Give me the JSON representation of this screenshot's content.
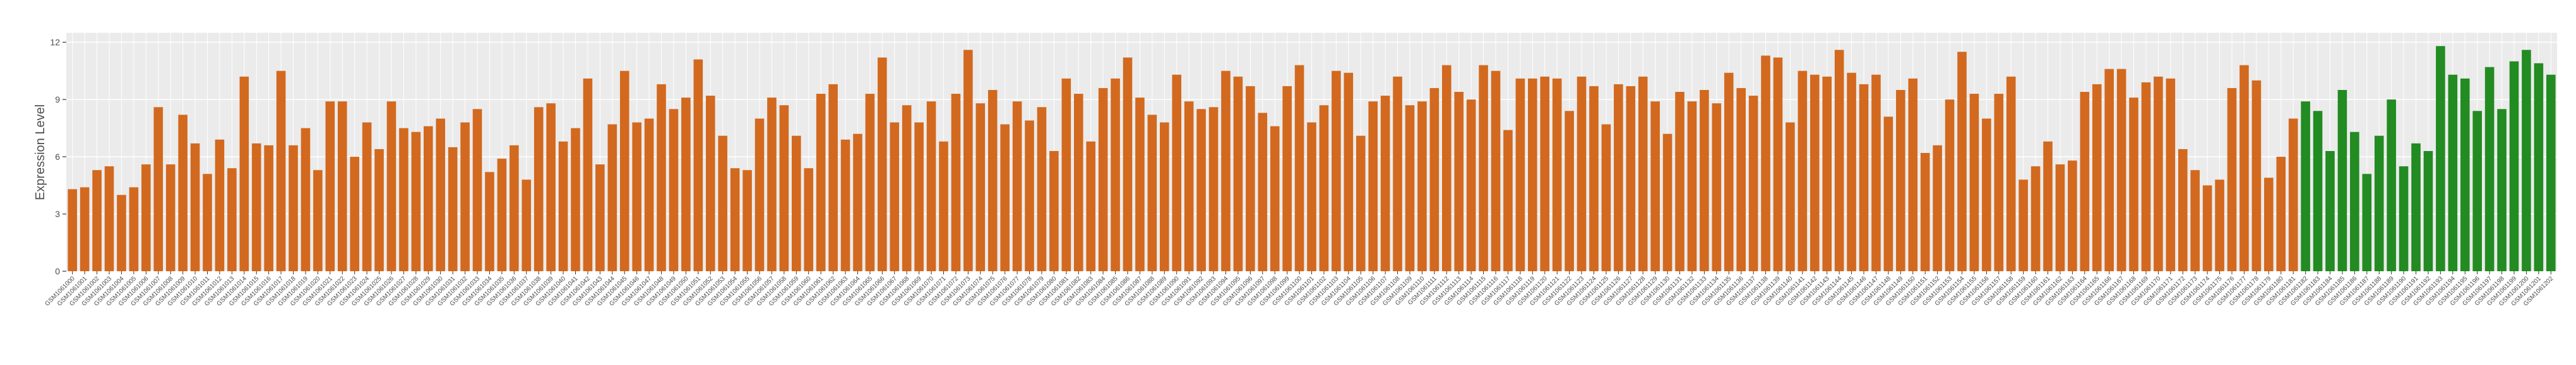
{
  "chart_data": {
    "type": "bar",
    "y_label": "Expression Level",
    "categories": [
      "GSM1061000",
      "GSM1061001",
      "GSM1061002",
      "GSM1061003",
      "GSM1061004",
      "GSM1061005",
      "GSM1061006",
      "GSM1061007",
      "GSM1061008",
      "GSM1061009",
      "GSM1061010",
      "GSM1061011",
      "GSM1061012",
      "GSM1061013",
      "GSM1061014",
      "GSM1061015",
      "GSM1061016",
      "GSM1061017",
      "GSM1061018",
      "GSM1061019",
      "GSM1061020",
      "GSM1061021",
      "GSM1061022",
      "GSM1061023",
      "GSM1061024",
      "GSM1061025",
      "GSM1061026",
      "GSM1061027",
      "GSM1061028",
      "GSM1061029",
      "GSM1061030",
      "GSM1061031",
      "GSM1061032",
      "GSM1061033",
      "GSM1061034",
      "GSM1061035",
      "GSM1061036",
      "GSM1061037",
      "GSM1061038",
      "GSM1061039",
      "GSM1061040",
      "GSM1061041",
      "GSM1061042",
      "GSM1061043",
      "GSM1061044",
      "GSM1061045",
      "GSM1061046",
      "GSM1061047",
      "GSM1061048",
      "GSM1061049",
      "GSM1061050",
      "GSM1061051",
      "GSM1061052",
      "GSM1061053",
      "GSM1061054",
      "GSM1061055",
      "GSM1061056",
      "GSM1061057",
      "GSM1061058",
      "GSM1061059",
      "GSM1061060",
      "GSM1061061",
      "GSM1061062",
      "GSM1061063",
      "GSM1061064",
      "GSM1061065",
      "GSM1061066",
      "GSM1061067",
      "GSM1061068",
      "GSM1061069",
      "GSM1061070",
      "GSM1061071",
      "GSM1061072",
      "GSM1061073",
      "GSM1061074",
      "GSM1061075",
      "GSM1061076",
      "GSM1061077",
      "GSM1061078",
      "GSM1061079",
      "GSM1061080",
      "GSM1061081",
      "GSM1061082",
      "GSM1061083",
      "GSM1061084",
      "GSM1061085",
      "GSM1061086",
      "GSM1061087",
      "GSM1061088",
      "GSM1061089",
      "GSM1061090",
      "GSM1061091",
      "GSM1061092",
      "GSM1061093",
      "GSM1061094",
      "GSM1061095",
      "GSM1061096",
      "GSM1061097",
      "GSM1061098",
      "GSM1061099",
      "GSM1061100",
      "GSM1061101",
      "GSM1061102",
      "GSM1061103",
      "GSM1061104",
      "GSM1061105",
      "GSM1061106",
      "GSM1061107",
      "GSM1061108",
      "GSM1061109",
      "GSM1061110",
      "GSM1061111",
      "GSM1061112",
      "GSM1061113",
      "GSM1061114",
      "GSM1061115",
      "GSM1061116",
      "GSM1061117",
      "GSM1061118",
      "GSM1061119",
      "GSM1061120",
      "GSM1061121",
      "GSM1061122",
      "GSM1061123",
      "GSM1061124",
      "GSM1061125",
      "GSM1061126",
      "GSM1061127",
      "GSM1061128",
      "GSM1061129",
      "GSM1061130",
      "GSM1061131",
      "GSM1061132",
      "GSM1061133",
      "GSM1061134",
      "GSM1061135",
      "GSM1061136",
      "GSM1061137",
      "GSM1061138",
      "GSM1061139",
      "GSM1061140",
      "GSM1061141",
      "GSM1061142",
      "GSM1061143",
      "GSM1061144",
      "GSM1061145",
      "GSM1061146",
      "GSM1061147",
      "GSM1061148",
      "GSM1061149",
      "GSM1061150",
      "GSM1061151",
      "GSM1061152",
      "GSM1061153",
      "GSM1061154",
      "GSM1061155",
      "GSM1061156",
      "GSM1061157",
      "GSM1061158",
      "GSM1061159",
      "GSM1061160",
      "GSM1061161",
      "GSM1061162",
      "GSM1061163",
      "GSM1061164",
      "GSM1061165",
      "GSM1061166",
      "GSM1061167",
      "GSM1061168",
      "GSM1061169",
      "GSM1061170",
      "GSM1061171",
      "GSM1061172",
      "GSM1061173",
      "GSM1061174",
      "GSM1061175",
      "GSM1061176",
      "GSM1061177",
      "GSM1061178",
      "GSM1061179",
      "GSM1061180",
      "GSM1061181",
      "GSM1061182",
      "GSM1061183",
      "GSM1061184",
      "GSM1061185",
      "GSM1061186",
      "GSM1061187",
      "GSM1061188",
      "GSM1061189",
      "GSM1061190",
      "GSM1061191",
      "GSM1061192",
      "GSM1061193",
      "GSM1061194",
      "GSM1061195",
      "GSM1061196",
      "GSM1061197",
      "GSM1061198",
      "GSM1061199",
      "GSM1061200",
      "GSM1061201",
      "GSM1061202"
    ],
    "series": [
      {
        "color": "#d2691e",
        "values": [
          4.3,
          4.4,
          5.3,
          5.5,
          4.0,
          4.4,
          5.6,
          8.6,
          5.6,
          8.2,
          6.7,
          5.1,
          6.9,
          5.4,
          10.2,
          6.7,
          6.6,
          10.5,
          6.6,
          7.5,
          5.3,
          8.9,
          8.9,
          6.0,
          7.8,
          6.4,
          8.9,
          7.5,
          7.3,
          7.6,
          8.0,
          6.5,
          7.8,
          8.5,
          5.2,
          5.9,
          6.6,
          4.8,
          8.6,
          8.8,
          6.8,
          7.5,
          10.1,
          5.6,
          7.7,
          10.5,
          7.8,
          8.0,
          9.8,
          8.5,
          9.1,
          11.1,
          9.2,
          7.1,
          5.4,
          5.3,
          8.0,
          9.1,
          8.7,
          7.1,
          5.4,
          9.3,
          9.8,
          6.9,
          7.2,
          9.3,
          11.2,
          7.8,
          8.7,
          7.8,
          8.9,
          6.8,
          9.3,
          11.6,
          8.8,
          9.5,
          7.7,
          8.9,
          7.9,
          8.6,
          6.3,
          10.1,
          9.3,
          6.8,
          9.6,
          10.1,
          11.2,
          9.1,
          8.2,
          7.8,
          10.3,
          8.9,
          8.5,
          8.6,
          10.5,
          10.2,
          9.7,
          8.3,
          7.6,
          9.7,
          10.8,
          7.8,
          8.7,
          10.5,
          10.4,
          7.1,
          8.9,
          9.2,
          10.2,
          8.7,
          8.9,
          9.6,
          10.8,
          9.4,
          9.0,
          10.8,
          10.5,
          7.4,
          10.1,
          10.1,
          10.2,
          10.1,
          8.4,
          10.2,
          9.7,
          7.7,
          9.8,
          9.7,
          10.2,
          8.9,
          7.2,
          9.4,
          8.9,
          9.5,
          8.8,
          10.4,
          9.6,
          9.2,
          11.3,
          11.2,
          7.8,
          10.5,
          10.3,
          10.2,
          11.6,
          10.4,
          9.8,
          10.3,
          8.1,
          9.5,
          10.1,
          6.2,
          6.6,
          9.0,
          11.5,
          9.3,
          8.0,
          9.3,
          10.2,
          4.8,
          5.5,
          6.8,
          5.6,
          5.8,
          9.4,
          9.8,
          10.6,
          10.6,
          9.1,
          9.9,
          10.2,
          10.1,
          6.4,
          5.3,
          4.5,
          4.8,
          9.6,
          10.8,
          10.0,
          4.9,
          6.0,
          8.0,
          null,
          null,
          null,
          null,
          null,
          null,
          null,
          null,
          null,
          null,
          null,
          null,
          null,
          null,
          null,
          null,
          null,
          null,
          null,
          null,
          null
        ]
      },
      {
        "color": "#228b22",
        "values": [
          null,
          null,
          null,
          null,
          null,
          null,
          null,
          null,
          null,
          null,
          null,
          null,
          null,
          null,
          null,
          null,
          null,
          null,
          null,
          null,
          null,
          null,
          null,
          null,
          null,
          null,
          null,
          null,
          null,
          null,
          null,
          null,
          null,
          null,
          null,
          null,
          null,
          null,
          null,
          null,
          null,
          null,
          null,
          null,
          null,
          null,
          null,
          null,
          null,
          null,
          null,
          null,
          null,
          null,
          null,
          null,
          null,
          null,
          null,
          null,
          null,
          null,
          null,
          null,
          null,
          null,
          null,
          null,
          null,
          null,
          null,
          null,
          null,
          null,
          null,
          null,
          null,
          null,
          null,
          null,
          null,
          null,
          null,
          null,
          null,
          null,
          null,
          null,
          null,
          null,
          null,
          null,
          null,
          null,
          null,
          null,
          null,
          null,
          null,
          null,
          null,
          null,
          null,
          null,
          null,
          null,
          null,
          null,
          null,
          null,
          null,
          null,
          null,
          null,
          null,
          null,
          null,
          null,
          null,
          null,
          null,
          null,
          null,
          null,
          null,
          null,
          null,
          null,
          null,
          null,
          null,
          null,
          null,
          null,
          null,
          null,
          null,
          null,
          null,
          null,
          null,
          null,
          null,
          null,
          null,
          null,
          null,
          null,
          null,
          null,
          null,
          null,
          null,
          null,
          null,
          null,
          null,
          null,
          null,
          null,
          null,
          null,
          null,
          null,
          null,
          null,
          null,
          null,
          null,
          null,
          null,
          null,
          null,
          null,
          null,
          null,
          null,
          null,
          null,
          null,
          null,
          null,
          8.9,
          8.4,
          6.3,
          9.5,
          7.3,
          5.1,
          7.1,
          9.0,
          5.5,
          6.7,
          6.3,
          11.8,
          10.3,
          10.1,
          8.4,
          10.7,
          8.5,
          11.0,
          11.6,
          10.9,
          10.3
        ]
      }
    ],
    "ylim": [
      0,
      12.5
    ],
    "yticks": [
      0,
      3,
      6,
      9,
      12
    ],
    "grid": true
  }
}
